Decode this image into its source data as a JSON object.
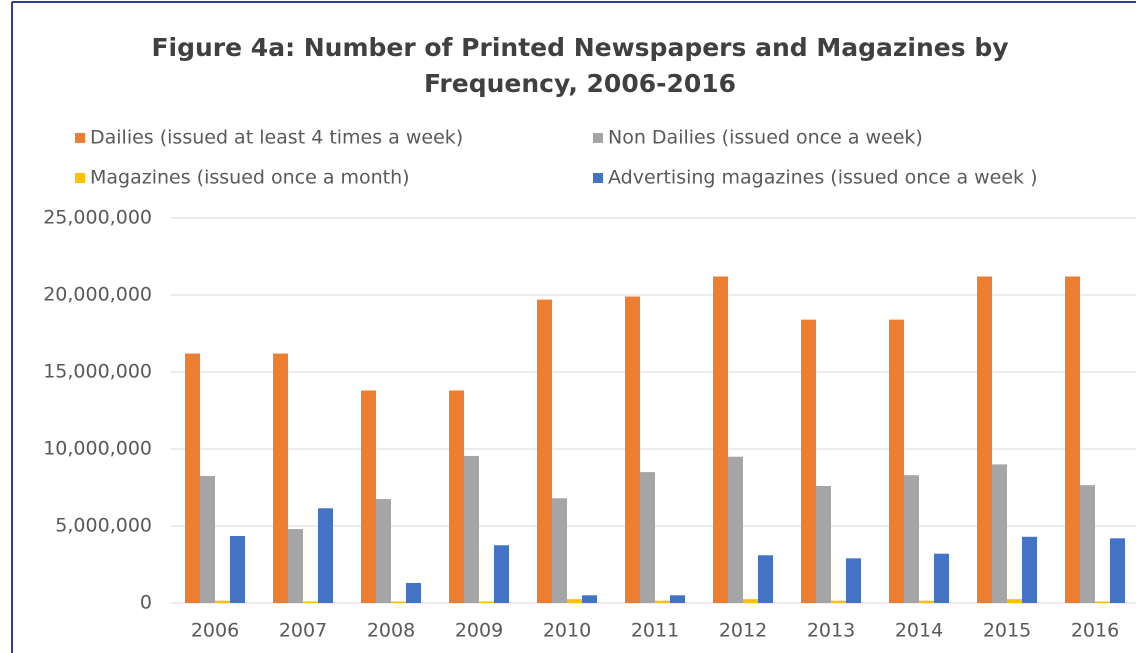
{
  "chart_data": {
    "type": "bar",
    "title": "Figure 4a: Number of Printed Newspapers and Magazines by Frequency, 2006-2016",
    "categories": [
      "2006",
      "2007",
      "2008",
      "2009",
      "2010",
      "2011",
      "2012",
      "2013",
      "2014",
      "2015",
      "2016"
    ],
    "series": [
      {
        "name": "Dailies (issued at least 4 times a week)",
        "color": "#ed7d31",
        "values": [
          16200000,
          16200000,
          13800000,
          13800000,
          19700000,
          19900000,
          21200000,
          18400000,
          18400000,
          21200000,
          21200000
        ]
      },
      {
        "name": "Non Dailies (issued once a week)",
        "color": "#a5a5a5",
        "values": [
          8250000,
          4800000,
          6750000,
          9550000,
          6800000,
          8500000,
          9500000,
          7600000,
          8300000,
          9000000,
          7650000
        ]
      },
      {
        "name": "Magazines (issued  once  a  month)",
        "color": "#ffc000",
        "values": [
          150000,
          100000,
          100000,
          100000,
          250000,
          150000,
          250000,
          150000,
          150000,
          250000,
          100000
        ]
      },
      {
        "name": "Advertising magazines (issued  once  a  week )",
        "color": "#4472c4",
        "values": [
          4350000,
          6150000,
          1300000,
          3750000,
          500000,
          500000,
          3100000,
          2900000,
          3200000,
          4300000,
          4200000
        ]
      }
    ],
    "ylim": [
      0,
      25000000
    ],
    "yticks": [
      0,
      {
        "value": 5000000,
        "label": "5,000,000"
      },
      {
        "value": 10000000,
        "label": "10,000,000"
      },
      {
        "value": 15000000,
        "label": "15,000,000"
      },
      {
        "value": 20000000,
        "label": "20,000,000"
      },
      {
        "value": 25000000,
        "label": "25,000,000"
      }
    ],
    "grid": true,
    "legend": "top"
  }
}
